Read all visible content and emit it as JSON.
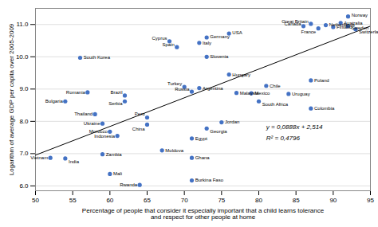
{
  "chart_data": {
    "type": "scatter",
    "x": [
      92,
      91,
      87,
      89,
      92,
      86,
      90,
      88,
      93,
      76,
      73,
      68,
      72,
      69,
      73,
      56,
      76,
      87,
      81,
      70,
      72,
      71,
      77,
      79,
      84,
      57,
      62,
      62,
      80,
      87,
      54,
      58,
      59,
      65,
      65,
      60,
      61,
      75,
      73,
      71,
      67,
      52,
      54,
      59,
      71,
      60,
      64,
      71
    ],
    "values": [
      11.25,
      11.05,
      11.02,
      10.98,
      10.95,
      10.95,
      10.92,
      10.88,
      10.85,
      10.72,
      10.6,
      10.48,
      10.43,
      10.3,
      10,
      9.97,
      9.45,
      9.27,
      9.1,
      9.07,
      9.03,
      8.92,
      8.88,
      8.87,
      8.85,
      8.9,
      8.8,
      8.62,
      8.62,
      8.4,
      8.62,
      8.22,
      7.93,
      8.12,
      7.9,
      7.68,
      7.55,
      7.97,
      7.78,
      7.47,
      7.1,
      6.87,
      6.85,
      6.98,
      6.87,
      6.37,
      6.03,
      6.17
    ],
    "labels": [
      "Norway",
      "Australia",
      "Great Britain",
      "Netherlands",
      "Sweden",
      "Canada",
      "Finland",
      "France",
      "Switzerland",
      "USA",
      "Germany",
      "Cyprus",
      "Italy",
      "Spain",
      "Slovenia",
      "South Korea",
      "Hungary",
      "Poland",
      "Chile",
      "Turkey",
      "Argentina",
      "Russia",
      "Malaysia",
      "Mexico",
      "Uruguay",
      "Romania",
      "Brazil",
      "Serbia",
      "South Africa",
      "Colombia",
      "Bulgaria",
      "Thailand",
      "Ukraine",
      "Peru",
      "China",
      "Morocco",
      "Indonesia",
      "Jordan",
      "Georgia",
      "Egypt",
      "Moldova",
      "Vietnam",
      "India",
      "Zambia",
      "Ghana",
      "Mali",
      "Rwanda",
      "Burkina Faso"
    ],
    "color": "#4472C4",
    "trendline": {
      "x": [
        50,
        95
      ],
      "values": [
        6.954,
        10.95
      ],
      "color": "#000000"
    },
    "annotations": [
      {
        "text": "y = 0,0888x + 2,514",
        "x": 81,
        "y": 7.83
      },
      {
        "text": "R² = 0,4796",
        "x": 81,
        "y": 7.47
      }
    ],
    "xlabel": "Percentage of people that consider it especially important that a child learns tolerance\nand respect for other people at home",
    "ylabel": "Logarithm of average GDP per capita over 2005-2009",
    "xlim": [
      50,
      95
    ],
    "ylim": [
      5.85,
      11.5
    ],
    "xticks": [
      50,
      55,
      60,
      65,
      70,
      75,
      80,
      85,
      90,
      95
    ],
    "yticks": [
      6,
      7,
      8,
      9,
      10,
      11
    ],
    "grid": true
  }
}
